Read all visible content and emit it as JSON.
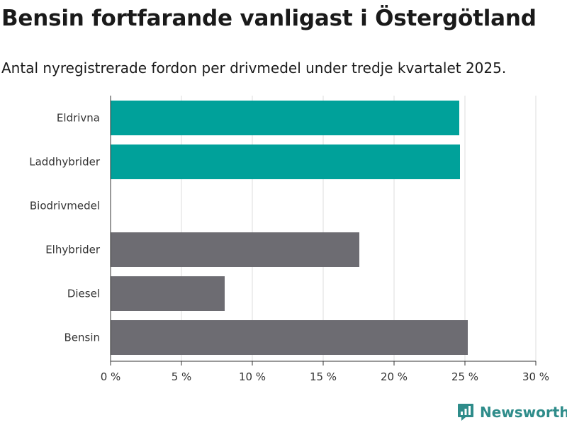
{
  "title": "Bensin fortfarande vanligast i Östergötland",
  "subtitle": "Antal nyregistrerade fordon per drivmedel under tredje kvartalet 2025.",
  "brand": "Newsworthy",
  "colors": {
    "highlight": "#00a19a",
    "base": "#6d6c72",
    "grid": "#dedede",
    "axis": "#333333",
    "brand": "#2e8c8a"
  },
  "chart_data": {
    "type": "bar",
    "orientation": "horizontal",
    "categories": [
      "Eldrivna",
      "Laddhybrider",
      "Biodrivmedel",
      "Elhybrider",
      "Diesel",
      "Bensin"
    ],
    "values": [
      24.6,
      24.65,
      0,
      17.55,
      8.05,
      25.2
    ],
    "highlighted": [
      true,
      true,
      true,
      false,
      false,
      false
    ],
    "xlim": [
      0,
      30
    ],
    "ticks": [
      0,
      5,
      10,
      15,
      20,
      25,
      30
    ],
    "tick_labels": [
      "0 %",
      "5 %",
      "10 %",
      "15 %",
      "20 %",
      "25 %",
      "30 %"
    ],
    "grid": true,
    "xlabel": "",
    "ylabel": ""
  }
}
